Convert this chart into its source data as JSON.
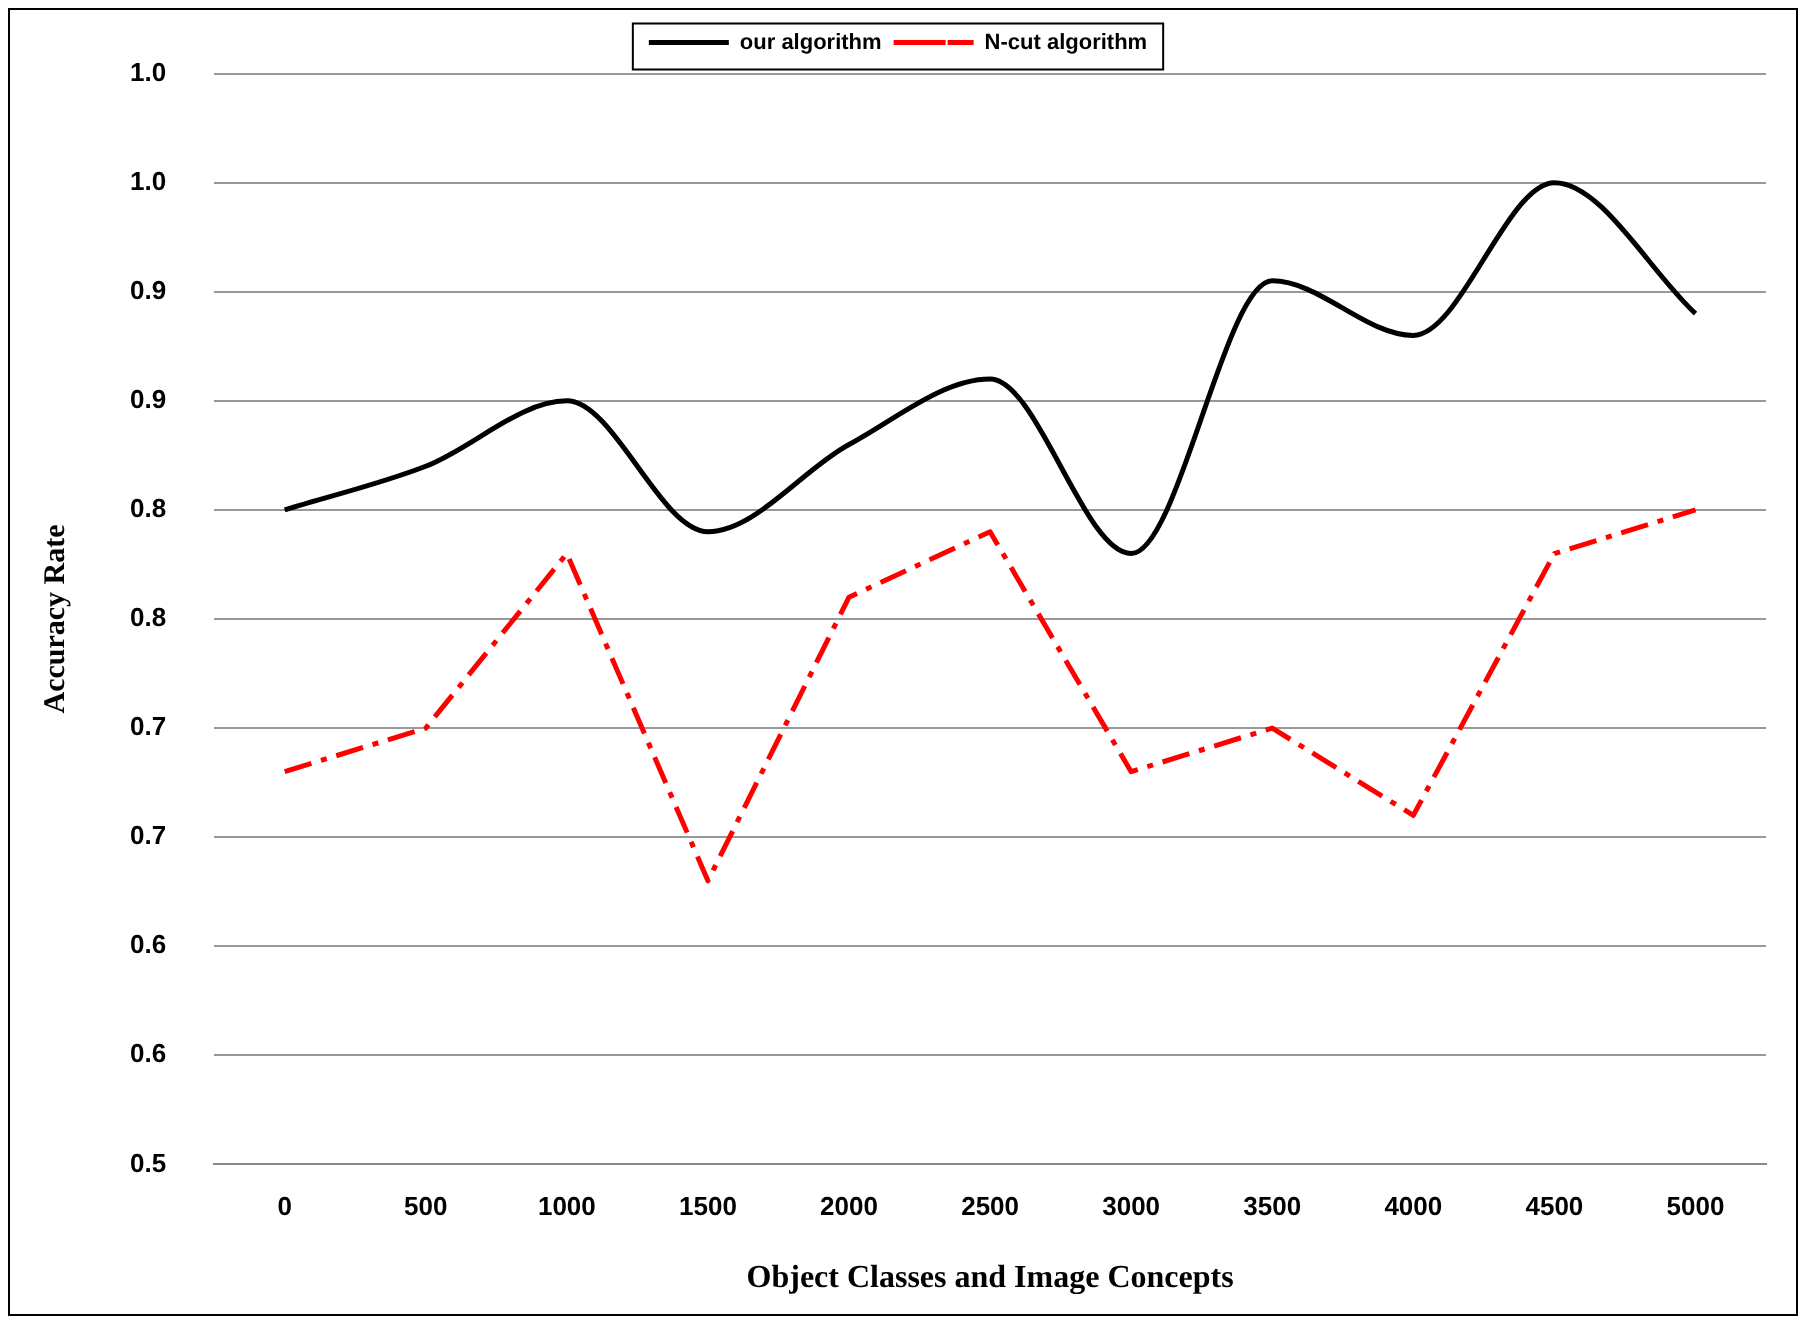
{
  "chart_data": {
    "type": "line",
    "xlabel": "Object Classes and Image Concepts",
    "ylabel": "Accuracy Rate",
    "categories": [
      "0",
      "500",
      "1000",
      "1500",
      "2000",
      "2500",
      "3000",
      "3500",
      "4000",
      "4500",
      "5000"
    ],
    "series": [
      {
        "name": "our algorithm",
        "color": "#000000",
        "line_style": "solid",
        "values": [
          0.8,
          0.82,
          0.85,
          0.79,
          0.83,
          0.86,
          0.78,
          0.905,
          0.88,
          0.95,
          0.89
        ]
      },
      {
        "name": "N-cut algorithm",
        "color": "#ff0000",
        "line_style": "dashed",
        "values": [
          0.68,
          0.7,
          0.78,
          0.63,
          0.76,
          0.79,
          0.68,
          0.7,
          0.66,
          0.78,
          0.8
        ]
      }
    ],
    "ylim": [
      0.5,
      1.0
    ],
    "yticks": [
      {
        "value": 0.5,
        "label": "0.5"
      },
      {
        "value": 0.55,
        "label": "0.6"
      },
      {
        "value": 0.6,
        "label": "0.6"
      },
      {
        "value": 0.65,
        "label": "0.7"
      },
      {
        "value": 0.7,
        "label": "0.7"
      },
      {
        "value": 0.75,
        "label": "0.8"
      },
      {
        "value": 0.8,
        "label": "0.8"
      },
      {
        "value": 0.85,
        "label": "0.9"
      },
      {
        "value": 0.9,
        "label": "0.9"
      },
      {
        "value": 0.95,
        "label": "1.0"
      },
      {
        "value": 1.0,
        "label": "1.0"
      }
    ],
    "grid": "y",
    "legend": "top",
    "marker": "none"
  }
}
